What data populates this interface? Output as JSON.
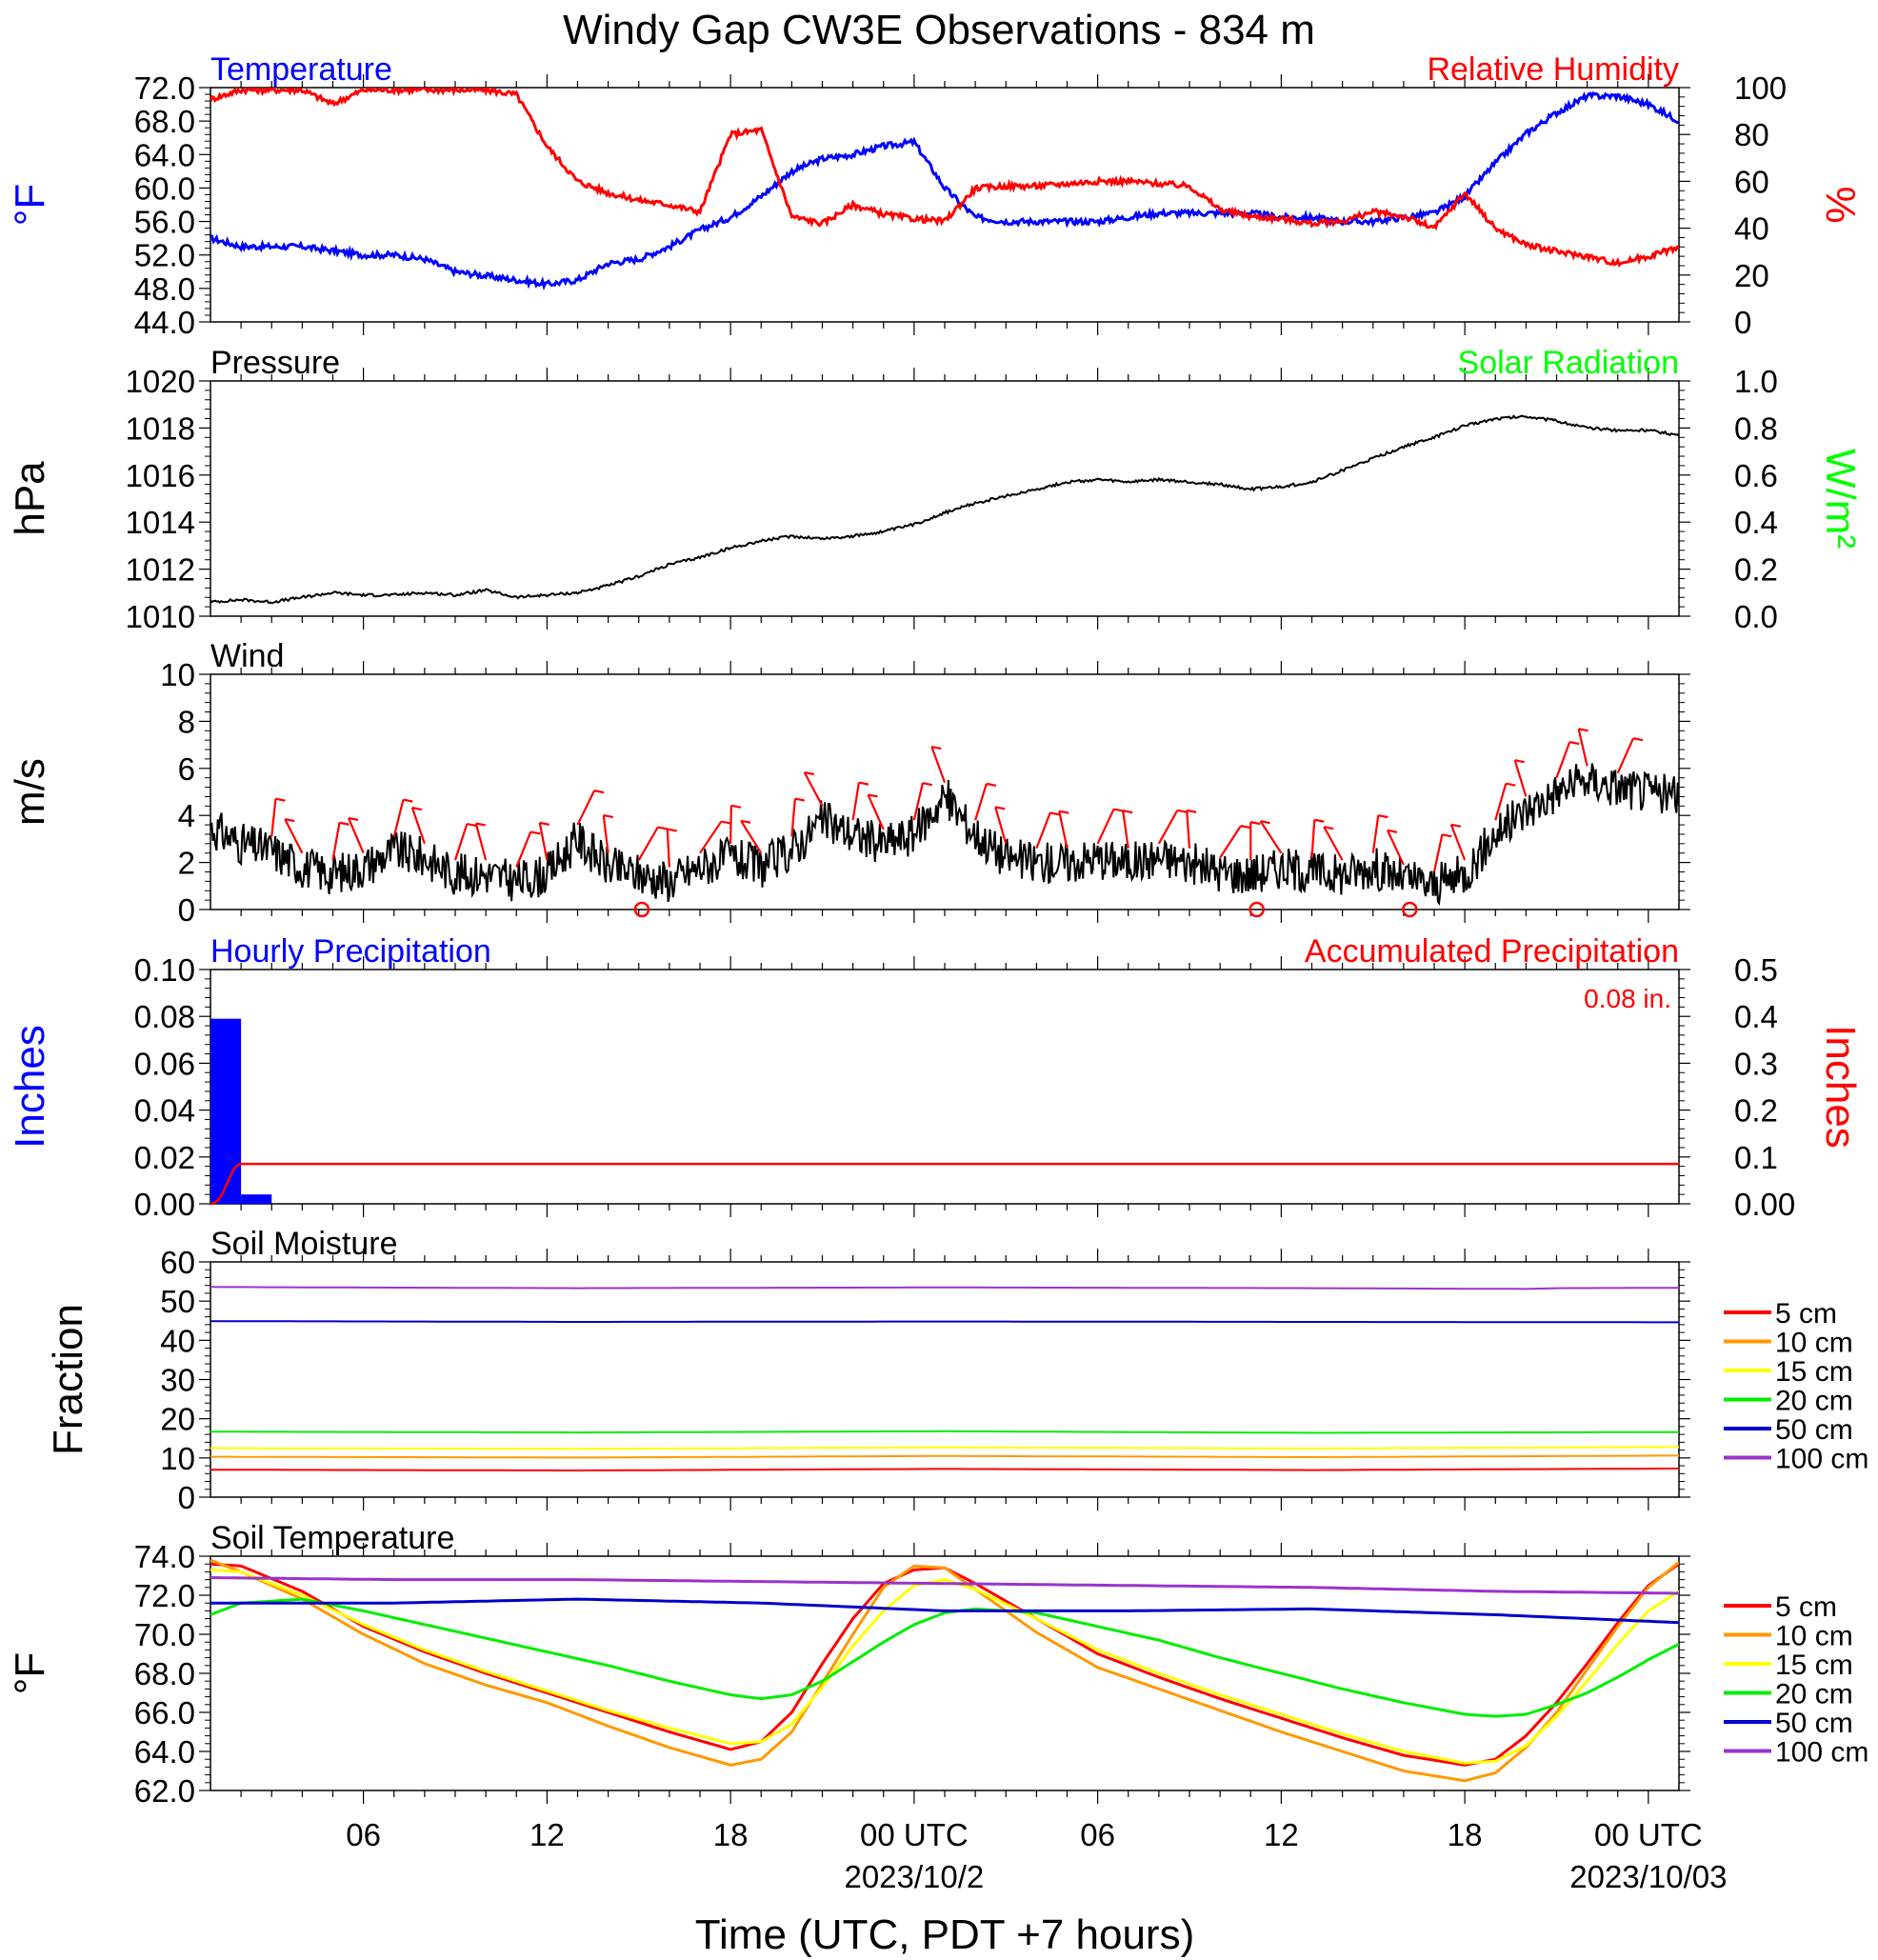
{
  "title": "Windy Gap CW3E Observations - 834 m",
  "xlabel": "Time (UTC, PDT +7 hours)",
  "time_axis": {
    "start_hour": 1,
    "end_hour": 49,
    "ticks": [
      {
        "hour": 6,
        "label": "06",
        "date": ""
      },
      {
        "hour": 12,
        "label": "12",
        "date": ""
      },
      {
        "hour": 18,
        "label": "18",
        "date": ""
      },
      {
        "hour": 24,
        "label": "00 UTC",
        "date": "2023/10/2"
      },
      {
        "hour": 30,
        "label": "06",
        "date": ""
      },
      {
        "hour": 36,
        "label": "12",
        "date": ""
      },
      {
        "hour": 42,
        "label": "18",
        "date": ""
      },
      {
        "hour": 48,
        "label": "00 UTC",
        "date": "2023/10/03"
      }
    ]
  },
  "colors": {
    "blue": "#0000ff",
    "red": "#ff0000",
    "green": "#00ff00",
    "black": "#000000",
    "orange": "#ff9900",
    "yellow": "#ffff00",
    "legend_green": "#00ee00",
    "navy": "#0000cc",
    "purple": "#9933cc"
  },
  "chart_data": [
    {
      "type": "line",
      "title_left": "Temperature",
      "title_right": "Relative Humidity",
      "ylabel_left": "°F",
      "ylabel_right": "%",
      "ylim_left": [
        44,
        72
      ],
      "ylim_right": [
        0,
        100
      ],
      "yticks_left": [
        "72.0",
        "68.0",
        "64.0",
        "60.0",
        "56.0",
        "52.0",
        "48.0",
        "44.0"
      ],
      "yticks_right": [
        "100",
        "80",
        "60",
        "40",
        "20",
        "0"
      ],
      "series": [
        {
          "name": "Temperature",
          "axis": "left",
          "color": "#0000ff",
          "x": [
            1,
            2,
            3,
            4,
            5,
            6,
            7,
            8,
            9,
            10,
            11,
            12,
            13,
            14,
            15,
            16,
            17,
            18,
            19,
            20,
            21,
            22,
            23,
            24,
            25,
            26,
            27,
            28,
            29,
            30,
            31,
            32,
            33,
            34,
            35,
            36,
            37,
            38,
            39,
            40,
            41,
            42,
            43,
            44,
            45,
            46,
            47,
            48,
            49
          ],
          "y": [
            54,
            53,
            53,
            53,
            52.5,
            52,
            52,
            51.5,
            50,
            49.5,
            49,
            48.5,
            49,
            51,
            51.5,
            53,
            55,
            56.5,
            59,
            62,
            63.5,
            64,
            65,
            65.5,
            60,
            56.5,
            56,
            56,
            56,
            56,
            56.5,
            57,
            57,
            57,
            57,
            56.5,
            56.5,
            56,
            56,
            56.5,
            57,
            59,
            63,
            66.5,
            69,
            71,
            71,
            70,
            68
          ]
        },
        {
          "name": "Relative Humidity",
          "axis": "right",
          "color": "#ff0000",
          "x": [
            1,
            2,
            3,
            4,
            5,
            6,
            7,
            8,
            9,
            10,
            11,
            12,
            13,
            14,
            15,
            16,
            17,
            18,
            19,
            20,
            21,
            22,
            23,
            24,
            25,
            26,
            27,
            28,
            29,
            30,
            31,
            32,
            33,
            34,
            35,
            36,
            37,
            38,
            39,
            40,
            41,
            42,
            43,
            44,
            45,
            46,
            47,
            48,
            49
          ],
          "y": [
            95,
            99,
            99,
            99,
            93,
            99,
            99,
            99,
            99,
            99,
            97,
            75,
            60,
            55,
            52,
            50,
            47,
            80,
            82,
            45,
            42,
            50,
            46,
            44,
            43,
            57,
            58,
            58,
            59,
            60,
            60,
            59,
            58,
            48,
            45,
            44,
            42,
            43,
            47,
            45,
            40,
            55,
            40,
            33,
            30,
            28,
            25,
            28,
            32
          ]
        }
      ]
    },
    {
      "type": "line",
      "title_left": "Pressure",
      "title_right": "Solar Radiation",
      "ylabel_left": "hPa",
      "ylabel_right": "W/m²",
      "ylim_left": [
        1010,
        1020
      ],
      "ylim_right": [
        0,
        1.0
      ],
      "yticks_left": [
        "1020",
        "1018",
        "1016",
        "1014",
        "1012",
        "1010"
      ],
      "yticks_right": [
        "1.0",
        "0.8",
        "0.6",
        "0.4",
        "0.2",
        "0.0"
      ],
      "series": [
        {
          "name": "Pressure",
          "axis": "left",
          "color": "#000000",
          "x": [
            1,
            2,
            3,
            4,
            5,
            6,
            7,
            8,
            9,
            10,
            11,
            12,
            13,
            14,
            15,
            16,
            17,
            18,
            19,
            20,
            21,
            22,
            23,
            24,
            25,
            26,
            27,
            28,
            29,
            30,
            31,
            32,
            33,
            34,
            35,
            36,
            37,
            38,
            39,
            40,
            41,
            42,
            43,
            44,
            45,
            46,
            47,
            48,
            49
          ],
          "y": [
            1010.6,
            1010.7,
            1010.6,
            1010.8,
            1011,
            1010.9,
            1010.9,
            1011,
            1010.9,
            1011.1,
            1010.8,
            1010.9,
            1011,
            1011.3,
            1011.7,
            1012.2,
            1012.5,
            1012.9,
            1013.2,
            1013.4,
            1013.3,
            1013.4,
            1013.6,
            1013.9,
            1014.4,
            1014.8,
            1015.1,
            1015.4,
            1015.7,
            1015.8,
            1015.7,
            1015.8,
            1015.7,
            1015.6,
            1015.4,
            1015.5,
            1015.7,
            1016.2,
            1016.7,
            1017.2,
            1017.6,
            1018.1,
            1018.4,
            1018.5,
            1018.3,
            1018,
            1017.9,
            1017.9,
            1017.7
          ]
        }
      ]
    },
    {
      "type": "line",
      "title_left": "Wind",
      "ylabel_left": "m/s",
      "ylim_left": [
        0,
        10
      ],
      "yticks_left": [
        "10",
        "8",
        "6",
        "4",
        "2",
        "0"
      ],
      "series": [
        {
          "name": "Wind",
          "axis": "left",
          "color": "#000000",
          "x": [
            1,
            2,
            3,
            4,
            5,
            6,
            7,
            8,
            9,
            10,
            11,
            12,
            13,
            14,
            15,
            16,
            17,
            18,
            19,
            20,
            21,
            22,
            23,
            24,
            25,
            26,
            27,
            28,
            29,
            30,
            31,
            32,
            33,
            34,
            35,
            36,
            37,
            38,
            39,
            40,
            41,
            42,
            43,
            44,
            45,
            46,
            47,
            48,
            49
          ],
          "y": [
            3.5,
            2.8,
            2.5,
            1.8,
            1.5,
            1.8,
            2.5,
            2.2,
            1.5,
            1.5,
            1.2,
            1.5,
            3,
            1.8,
            1.5,
            1.2,
            1.8,
            2.2,
            1.8,
            2.5,
            3.8,
            3.2,
            2.8,
            3.2,
            4.8,
            3.2,
            2.2,
            2,
            2,
            2.2,
            2,
            2.2,
            2,
            1.6,
            1.5,
            1.8,
            1.6,
            1.5,
            1.8,
            1.3,
            1,
            1.5,
            3.2,
            4.2,
            5,
            5.5,
            5.2,
            5,
            4.8
          ]
        }
      ],
      "barb_color": "#ff0000",
      "calm_circles_hour": [
        15.1,
        35.2,
        40.2
      ]
    },
    {
      "type": "bar",
      "title_left": "Hourly Precipitation",
      "title_right": "Accumulated Precipitation",
      "total_label": "0.08 in.",
      "ylabel_left": "Inches",
      "ylabel_right": "Inches",
      "ylim_left": [
        0,
        0.1
      ],
      "ylim_right": [
        0,
        0.5
      ],
      "yticks_left": [
        "0.10",
        "0.08",
        "0.06",
        "0.04",
        "0.02",
        "0.00"
      ],
      "yticks_right": [
        "0.5",
        "0.4",
        "0.3",
        "0.2",
        "0.1",
        "0.00"
      ],
      "bars": {
        "hours": [
          1,
          2
        ],
        "values": [
          0.079,
          0.004
        ],
        "color": "#0000ff"
      },
      "accumulated": {
        "value": 0.085,
        "color": "#ff0000"
      }
    },
    {
      "type": "line",
      "title_left": "Soil Moisture",
      "ylabel_left": "Fraction",
      "ylim_left": [
        0,
        60
      ],
      "yticks_left": [
        "60",
        "50",
        "40",
        "30",
        "20",
        "10",
        "0"
      ],
      "series": [
        {
          "name": "5 cm",
          "color": "#ff0000",
          "x": [
            1,
            13,
            25,
            37,
            49
          ],
          "y": [
            7,
            6.8,
            7.2,
            6.9,
            7.3
          ]
        },
        {
          "name": "10 cm",
          "color": "#ff9900",
          "x": [
            1,
            13,
            25,
            37,
            49
          ],
          "y": [
            10.3,
            10.1,
            10.5,
            10.2,
            10.6
          ]
        },
        {
          "name": "15 cm",
          "color": "#ffff00",
          "x": [
            1,
            13,
            25,
            37,
            49
          ],
          "y": [
            12.5,
            12.3,
            12.7,
            12.4,
            12.8
          ]
        },
        {
          "name": "20 cm",
          "color": "#00ee00",
          "x": [
            1,
            13,
            25,
            37,
            49
          ],
          "y": [
            16.7,
            16.5,
            16.8,
            16.4,
            16.6
          ]
        },
        {
          "name": "50 cm",
          "color": "#0000cc",
          "x": [
            1,
            13,
            25,
            37,
            49
          ],
          "y": [
            44.9,
            44.7,
            44.8,
            44.7,
            44.6
          ]
        },
        {
          "name": "100 cm",
          "color": "#9933cc",
          "x": [
            1,
            13,
            25,
            37,
            44,
            45,
            49
          ],
          "y": [
            53.6,
            53.3,
            53.5,
            53.3,
            53.1,
            53.3,
            53.4
          ]
        }
      ],
      "legend": [
        "5 cm",
        "10 cm",
        "15 cm",
        "20 cm",
        "50 cm",
        "100 cm"
      ]
    },
    {
      "type": "line",
      "title_left": "Soil Temperature",
      "ylabel_left": "°F",
      "ylim_left": [
        62,
        74
      ],
      "yticks_left": [
        "74.0",
        "72.0",
        "70.0",
        "68.0",
        "66.0",
        "64.0",
        "62.0"
      ],
      "series": [
        {
          "name": "5 cm",
          "color": "#ff0000",
          "x": [
            1,
            2,
            4,
            6,
            8,
            10,
            12,
            14,
            16,
            18,
            19,
            20,
            21,
            22,
            23,
            24,
            25,
            26,
            28,
            30,
            32,
            34,
            36,
            38,
            40,
            42,
            43,
            44,
            45,
            46,
            47,
            48,
            49
          ],
          "y": [
            73.6,
            73.5,
            72.2,
            70.4,
            69.1,
            68,
            67,
            66,
            65,
            64.1,
            64.5,
            66,
            68.5,
            70.8,
            72.6,
            73.3,
            73.4,
            72.6,
            70.8,
            69,
            67.8,
            66.7,
            65.7,
            64.7,
            63.8,
            63.3,
            63.6,
            64.8,
            66.5,
            68.5,
            70.6,
            72.5,
            73.6
          ]
        },
        {
          "name": "10 cm",
          "color": "#ff9900",
          "x": [
            1,
            2,
            4,
            6,
            8,
            10,
            12,
            14,
            16,
            18,
            19,
            20,
            21,
            22,
            23,
            24,
            25,
            26,
            28,
            30,
            32,
            34,
            36,
            38,
            40,
            42,
            43,
            44,
            45,
            46,
            47,
            48,
            49
          ],
          "y": [
            73.8,
            73.2,
            71.8,
            70,
            68.5,
            67.4,
            66.5,
            65.3,
            64.2,
            63.3,
            63.6,
            65,
            67.5,
            70,
            72.4,
            73.5,
            73.4,
            72.3,
            70.1,
            68.3,
            67.2,
            66.1,
            65,
            64,
            63,
            62.5,
            62.9,
            64.2,
            66,
            68.2,
            70.4,
            72.4,
            73.7
          ]
        },
        {
          "name": "15 cm",
          "color": "#ffff00",
          "x": [
            1,
            2,
            4,
            6,
            8,
            10,
            12,
            14,
            16,
            18,
            19,
            20,
            21,
            22,
            23,
            24,
            25,
            26,
            28,
            30,
            32,
            34,
            36,
            38,
            40,
            42,
            43,
            44,
            45,
            46,
            47,
            48,
            49
          ],
          "y": [
            73.3,
            73.2,
            72,
            70.5,
            69.2,
            68.1,
            67.1,
            66.1,
            65.2,
            64.4,
            64.5,
            65.4,
            67.3,
            69.4,
            71.2,
            72.5,
            72.8,
            72.3,
            70.8,
            69.2,
            68,
            66.9,
            65.9,
            64.9,
            64,
            63.4,
            63.5,
            64.3,
            65.8,
            67.6,
            69.5,
            71.2,
            72.2
          ]
        },
        {
          "name": "20 cm",
          "color": "#00ee00",
          "x": [
            1,
            2,
            4,
            6,
            8,
            10,
            12,
            14,
            16,
            18,
            19,
            20,
            21,
            22,
            23,
            24,
            25,
            26,
            28,
            30,
            32,
            34,
            36,
            38,
            40,
            42,
            43,
            44,
            45,
            46,
            47,
            48,
            49
          ],
          "y": [
            71,
            71.6,
            71.8,
            71.2,
            70.5,
            69.8,
            69.1,
            68.4,
            67.6,
            66.9,
            66.7,
            66.9,
            67.6,
            68.6,
            69.6,
            70.5,
            71.1,
            71.3,
            71.1,
            70.4,
            69.7,
            68.8,
            68,
            67.2,
            66.5,
            65.9,
            65.8,
            65.9,
            66.4,
            67,
            67.8,
            68.7,
            69.5
          ]
        },
        {
          "name": "50 cm",
          "color": "#0000cc",
          "x": [
            1,
            7,
            13,
            19,
            25,
            31,
            37,
            43,
            49
          ],
          "y": [
            71.6,
            71.6,
            71.8,
            71.6,
            71.2,
            71.2,
            71.3,
            71,
            70.6
          ]
        },
        {
          "name": "100 cm",
          "color": "#9933cc",
          "x": [
            1,
            7,
            13,
            19,
            25,
            31,
            37,
            43,
            49
          ],
          "y": [
            72.9,
            72.8,
            72.8,
            72.7,
            72.6,
            72.5,
            72.4,
            72.2,
            72.1
          ]
        }
      ],
      "legend": [
        "5 cm",
        "10 cm",
        "15 cm",
        "20 cm",
        "50 cm",
        "100 cm"
      ]
    }
  ]
}
